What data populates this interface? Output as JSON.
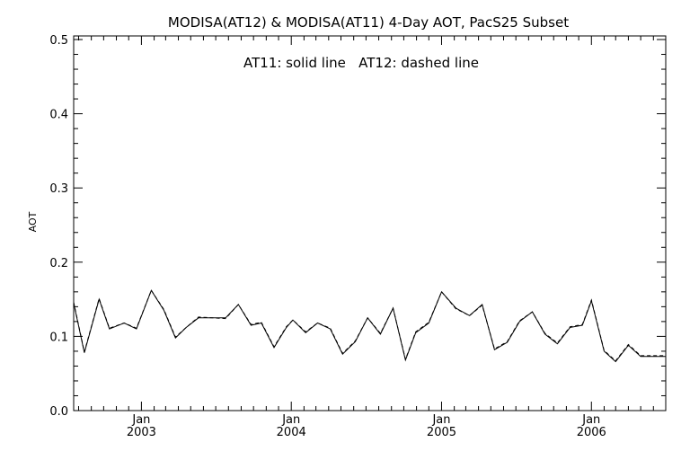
{
  "chart_data": {
    "type": "line",
    "title": "MODISA(AT12) & MODISA(AT11) 4-Day AOT, PacS25 Subset",
    "annotation": "AT11: solid line   AT12: dashed line",
    "xlabel": "",
    "ylabel": "AOT",
    "ylim": [
      0.0,
      0.5
    ],
    "yticks": [
      "0.0",
      "0.1",
      "0.2",
      "0.3",
      "0.4",
      "0.5"
    ],
    "xlim": [
      "2002-07-20",
      "2006-07-01"
    ],
    "xticks": [
      {
        "month": "Jan",
        "year": "2003",
        "date": "2003-01-01"
      },
      {
        "month": "Jan",
        "year": "2004",
        "date": "2004-01-01"
      },
      {
        "month": "Jan",
        "year": "2005",
        "date": "2005-01-01"
      },
      {
        "month": "Jan",
        "year": "2006",
        "date": "2006-01-01"
      }
    ],
    "grid": false,
    "line_color": "#000000",
    "series": [
      {
        "name": "AT11",
        "style": "solid",
        "x": [
          "2002-07-20",
          "2002-08-15",
          "2002-09-20",
          "2002-10-15",
          "2002-11-20",
          "2002-12-20",
          "2003-01-25",
          "2003-02-25",
          "2003-03-25",
          "2003-04-20",
          "2003-05-20",
          "2003-06-25",
          "2003-07-25",
          "2003-08-25",
          "2003-09-25",
          "2003-10-20",
          "2003-11-20",
          "2003-12-20",
          "2004-01-05",
          "2004-02-05",
          "2004-03-05",
          "2004-04-05",
          "2004-05-05",
          "2004-06-05",
          "2004-07-05",
          "2004-08-05",
          "2004-09-05",
          "2004-10-05",
          "2004-10-30",
          "2004-12-01",
          "2005-01-01",
          "2005-02-05",
          "2005-03-10",
          "2005-04-10",
          "2005-05-10",
          "2005-06-10",
          "2005-07-10",
          "2005-08-10",
          "2005-09-10",
          "2005-10-10",
          "2005-11-10",
          "2005-12-10",
          "2006-01-01",
          "2006-02-01",
          "2006-03-01",
          "2006-04-01",
          "2006-05-01",
          "2006-06-01",
          "2006-07-01"
        ],
        "y": [
          0.145,
          0.078,
          0.15,
          0.11,
          0.118,
          0.11,
          0.162,
          0.135,
          0.098,
          0.112,
          0.125,
          0.125,
          0.125,
          0.143,
          0.115,
          0.118,
          0.085,
          0.112,
          0.122,
          0.105,
          0.118,
          0.11,
          0.076,
          0.093,
          0.125,
          0.103,
          0.138,
          0.068,
          0.105,
          0.118,
          0.16,
          0.138,
          0.128,
          0.143,
          0.082,
          0.092,
          0.12,
          0.133,
          0.103,
          0.09,
          0.112,
          0.115,
          0.148,
          0.08,
          0.066,
          0.088,
          0.073,
          0.073,
          0.073
        ]
      },
      {
        "name": "AT12",
        "style": "dashed",
        "x": [
          "2002-07-20",
          "2002-08-15",
          "2002-09-20",
          "2002-10-15",
          "2002-11-20",
          "2002-12-20",
          "2003-01-25",
          "2003-02-25",
          "2003-03-25",
          "2003-04-20",
          "2003-05-20",
          "2003-06-25",
          "2003-07-25",
          "2003-08-25",
          "2003-09-25",
          "2003-10-20",
          "2003-11-20",
          "2003-12-20",
          "2004-01-05",
          "2004-02-05",
          "2004-03-05",
          "2004-04-05",
          "2004-05-05",
          "2004-06-05",
          "2004-07-05",
          "2004-08-05",
          "2004-09-05",
          "2004-10-05",
          "2004-10-30",
          "2004-12-01",
          "2005-01-01",
          "2005-02-05",
          "2005-03-10",
          "2005-04-10",
          "2005-05-10",
          "2005-06-10",
          "2005-07-10",
          "2005-08-10",
          "2005-09-10",
          "2005-10-10",
          "2005-11-10",
          "2005-12-10",
          "2006-01-01",
          "2006-02-01",
          "2006-03-01",
          "2006-04-01",
          "2006-05-01",
          "2006-06-01",
          "2006-07-01"
        ],
        "y": [
          0.146,
          0.079,
          0.151,
          0.111,
          0.118,
          0.111,
          0.162,
          0.136,
          0.099,
          0.112,
          0.126,
          0.125,
          0.124,
          0.143,
          0.116,
          0.119,
          0.086,
          0.113,
          0.122,
          0.106,
          0.118,
          0.111,
          0.077,
          0.094,
          0.125,
          0.104,
          0.138,
          0.069,
          0.106,
          0.119,
          0.16,
          0.137,
          0.128,
          0.142,
          0.083,
          0.093,
          0.121,
          0.133,
          0.104,
          0.091,
          0.113,
          0.116,
          0.149,
          0.081,
          0.067,
          0.089,
          0.074,
          0.074,
          0.074
        ]
      }
    ]
  }
}
